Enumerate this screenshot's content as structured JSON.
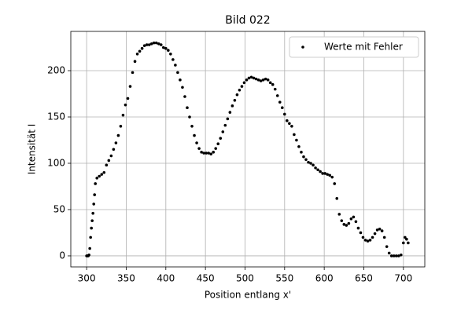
{
  "chart_data": {
    "type": "scatter",
    "title": "Bild 022",
    "x_label": "Position entlang x'",
    "y_label": "Intensität I",
    "series": [
      {
        "name": "Werte mit Fehler",
        "color": "#000000",
        "x": [
          300,
          301,
          302,
          303,
          304,
          305,
          306,
          307,
          308,
          309,
          310,
          311,
          313,
          316,
          319,
          322,
          325,
          328,
          331,
          334,
          337,
          340,
          343,
          346,
          349,
          352,
          355,
          358,
          361,
          364,
          367,
          370,
          373,
          376,
          379,
          382,
          385,
          388,
          391,
          394,
          397,
          400,
          403,
          406,
          409,
          412,
          415,
          418,
          421,
          424,
          427,
          430,
          433,
          436,
          439,
          442,
          445,
          448,
          451,
          454,
          457,
          460,
          463,
          466,
          469,
          472,
          475,
          478,
          481,
          484,
          487,
          490,
          493,
          496,
          499,
          502,
          505,
          508,
          511,
          514,
          517,
          520,
          523,
          526,
          529,
          532,
          535,
          538,
          541,
          544,
          547,
          550,
          553,
          556,
          559,
          562,
          565,
          568,
          571,
          574,
          577,
          580,
          583,
          586,
          589,
          592,
          595,
          598,
          601,
          604,
          607,
          610,
          613,
          616,
          619,
          622,
          625,
          628,
          631,
          634,
          637,
          640,
          643,
          646,
          649,
          652,
          655,
          658,
          661,
          664,
          667,
          670,
          673,
          676,
          679,
          682,
          685,
          688,
          691,
          694,
          697,
          700,
          702,
          704,
          706
        ],
        "values": [
          0,
          0,
          0,
          1,
          8,
          20,
          30,
          38,
          46,
          56,
          66,
          78,
          84,
          86,
          88,
          90,
          98,
          103,
          108,
          115,
          122,
          130,
          140,
          152,
          163,
          170,
          183,
          198,
          210,
          218,
          221,
          224,
          227,
          228,
          228,
          229,
          230,
          230,
          229,
          228,
          225,
          224,
          222,
          218,
          212,
          206,
          198,
          190,
          182,
          172,
          160,
          150,
          140,
          130,
          122,
          116,
          112,
          111,
          111,
          111,
          110,
          112,
          116,
          121,
          127,
          134,
          141,
          148,
          155,
          162,
          168,
          174,
          179,
          183,
          187,
          190,
          192,
          193,
          192,
          191,
          190,
          189,
          190,
          191,
          190,
          187,
          185,
          180,
          173,
          166,
          160,
          153,
          146,
          143,
          140,
          131,
          125,
          118,
          112,
          107,
          104,
          101,
          100,
          98,
          95,
          93,
          91,
          89,
          89,
          88,
          87,
          85,
          78,
          62,
          45,
          38,
          34,
          33,
          35,
          40,
          42,
          37,
          30,
          25,
          20,
          17,
          16,
          17,
          20,
          24,
          28,
          29,
          27,
          20,
          10,
          3,
          0,
          0,
          0,
          0,
          1,
          14,
          20,
          18,
          14
        ]
      }
    ],
    "xlim": [
      280,
      727
    ],
    "ylim": [
      -11.9,
      242.4
    ],
    "xticks": [
      300,
      350,
      400,
      450,
      500,
      550,
      600,
      650,
      700
    ],
    "yticks": [
      0,
      50,
      100,
      150,
      200
    ],
    "grid": true,
    "legend_position": "upper right"
  }
}
